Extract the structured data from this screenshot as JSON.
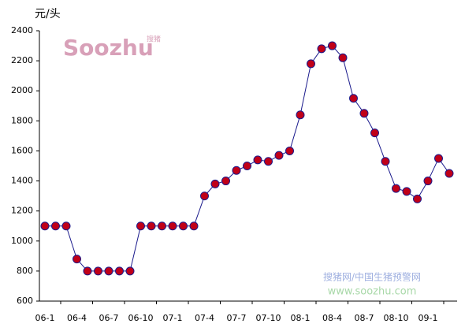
{
  "chart_data": {
    "type": "line",
    "y_unit": "元/头",
    "categories": [
      "06-1",
      null,
      null,
      "06-4",
      null,
      null,
      "06-7",
      null,
      null,
      "06-10",
      null,
      null,
      "07-1",
      null,
      null,
      "07-4",
      null,
      null,
      "07-7",
      null,
      null,
      "07-10",
      null,
      null,
      "08-1",
      null,
      null,
      "08-4",
      null,
      null,
      "08-7",
      null,
      null,
      "08-10",
      null,
      null,
      "09-1",
      null,
      null
    ],
    "series": [
      {
        "color": "#1a1a8c",
        "marker_color": "#c00018",
        "values": [
          1100,
          1100,
          1100,
          880,
          800,
          800,
          800,
          800,
          800,
          1100,
          1100,
          1100,
          1100,
          1100,
          1100,
          1300,
          1380,
          1400,
          1470,
          1500,
          1540,
          1530,
          1570,
          1600,
          1840,
          2180,
          2280,
          2300,
          2220,
          1950,
          1850,
          1720,
          1530,
          1350,
          1330,
          1280,
          1400,
          1550,
          1450
        ]
      }
    ],
    "ylim": [
      600,
      2400
    ],
    "yticks": [
      600,
      800,
      1000,
      1200,
      1400,
      1600,
      1800,
      2000,
      2200,
      2400
    ],
    "watermark": {
      "logo": "Soozhu",
      "logo_small": "搜猪",
      "site_name": "搜猪网/中国生猪预警网",
      "url": "www.soozhu.com"
    }
  }
}
